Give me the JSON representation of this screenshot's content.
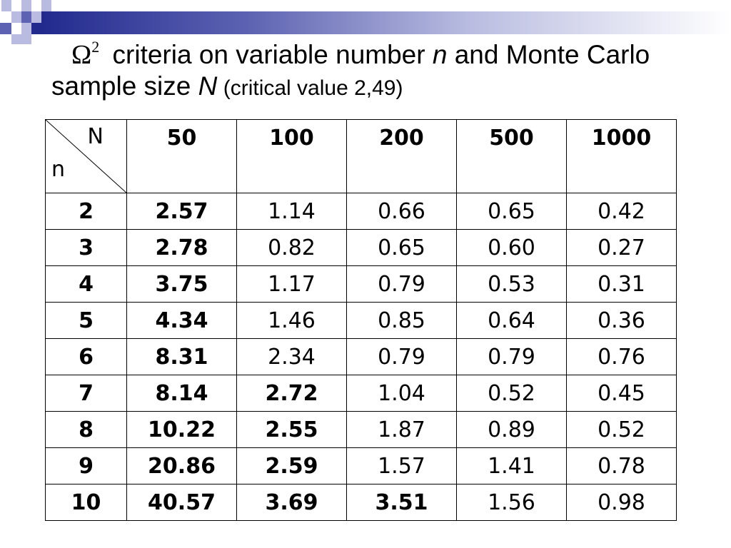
{
  "slide": {
    "title": {
      "omega": "Ω",
      "superscript": "2",
      "part1": " criteria on variable number ",
      "var_n": "n",
      "part2": " and Monte Carlo sample size ",
      "var_N": "N",
      "note": " (critical value 2,49)"
    }
  },
  "table": {
    "corner_top": "N",
    "corner_bottom": "n",
    "columns": [
      "50",
      "100",
      "200",
      "500",
      "1000"
    ],
    "rows": [
      {
        "n": "2",
        "cells": [
          "2.57",
          "1.14",
          "0.66",
          "0.65",
          "0.42"
        ],
        "bold": [
          true,
          false,
          false,
          false,
          false
        ]
      },
      {
        "n": "3",
        "cells": [
          "2.78",
          "0.82",
          "0.65",
          "0.60",
          "0.27"
        ],
        "bold": [
          true,
          false,
          false,
          false,
          false
        ]
      },
      {
        "n": "4",
        "cells": [
          "3.75",
          "1.17",
          "0.79",
          "0.53",
          "0.31"
        ],
        "bold": [
          true,
          false,
          false,
          false,
          false
        ]
      },
      {
        "n": "5",
        "cells": [
          "4.34",
          "1.46",
          "0.85",
          "0.64",
          "0.36"
        ],
        "bold": [
          true,
          false,
          false,
          false,
          false
        ]
      },
      {
        "n": "6",
        "cells": [
          "8.31",
          "2.34",
          "0.79",
          "0.79",
          "0.76"
        ],
        "bold": [
          true,
          false,
          false,
          false,
          false
        ]
      },
      {
        "n": "7",
        "cells": [
          "8.14",
          "2.72",
          "1.04",
          "0.52",
          "0.45"
        ],
        "bold": [
          true,
          true,
          false,
          false,
          false
        ]
      },
      {
        "n": "8",
        "cells": [
          "10.22",
          "2.55",
          "1.87",
          "0.89",
          "0.52"
        ],
        "bold": [
          true,
          true,
          false,
          false,
          false
        ]
      },
      {
        "n": "9",
        "cells": [
          "20.86",
          "2.59",
          "1.57",
          "1.41",
          "0.78"
        ],
        "bold": [
          true,
          true,
          false,
          false,
          false
        ]
      },
      {
        "n": "10",
        "cells": [
          "40.57",
          "3.69",
          "3.51",
          "1.56",
          "0.98"
        ],
        "bold": [
          true,
          true,
          true,
          false,
          false
        ]
      }
    ]
  },
  "colors": {
    "accent_dark": "#222a8e",
    "accent_mid": "#5d63b2",
    "accent_light": "#b9bce0"
  }
}
